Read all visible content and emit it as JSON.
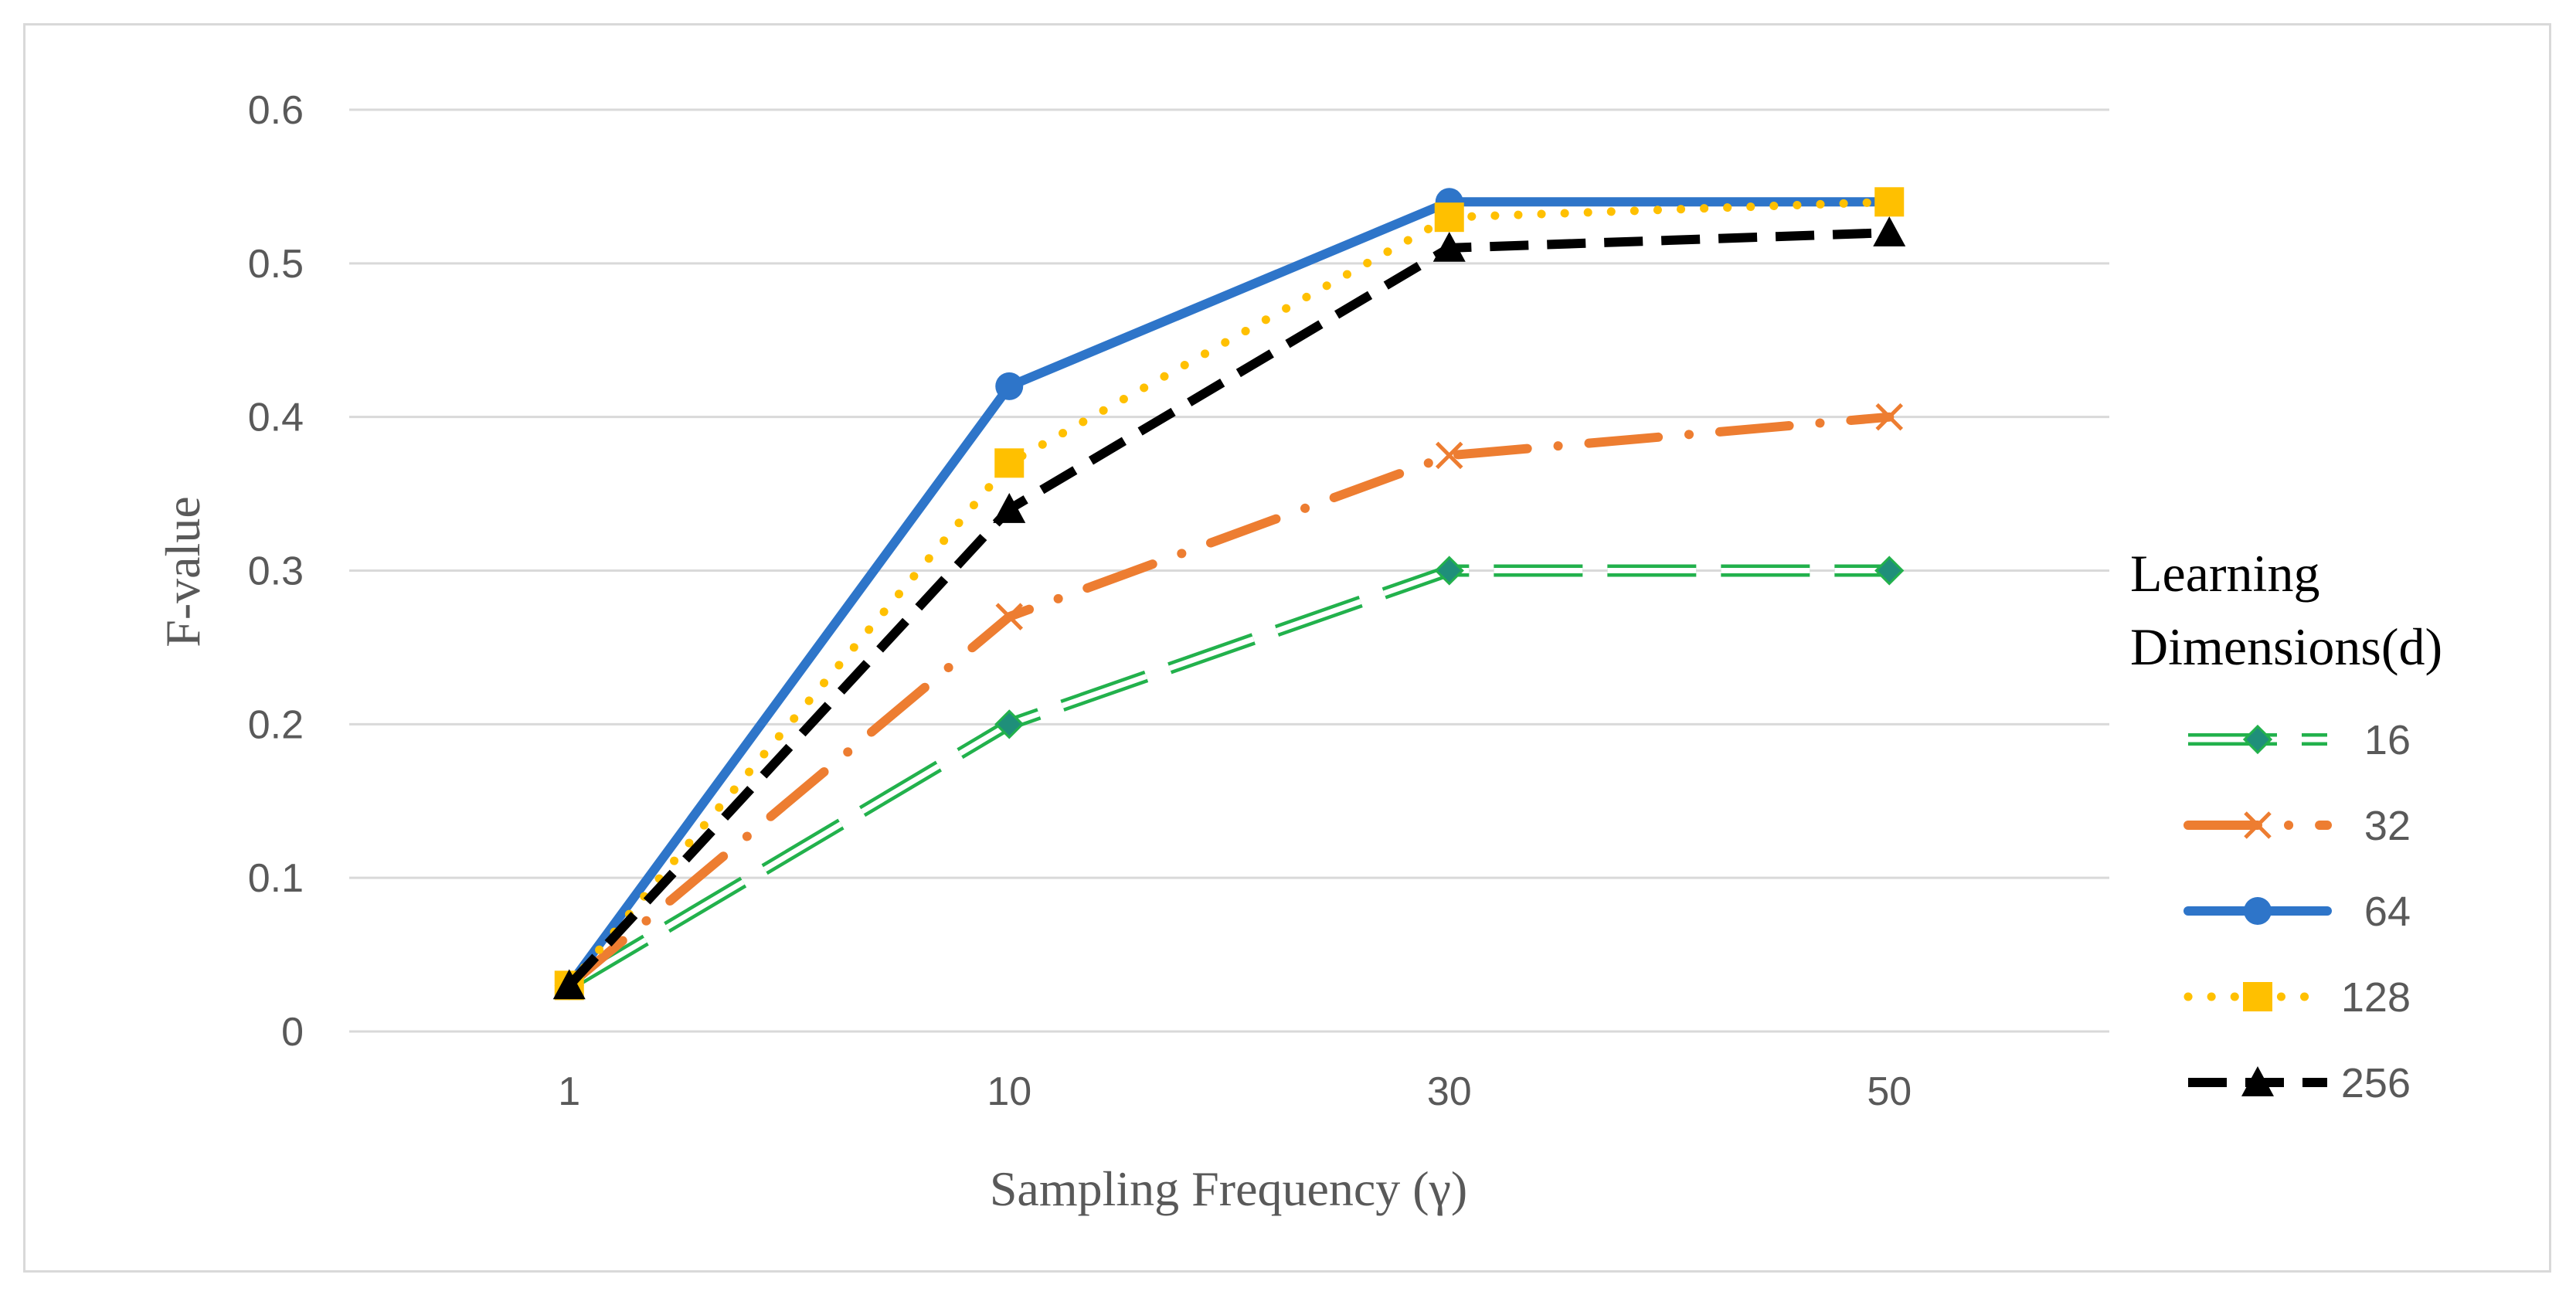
{
  "chart_data": {
    "type": "line",
    "title": "",
    "xlabel": "Sampling Frequency (γ)",
    "ylabel": "F-value",
    "categories": [
      "1",
      "10",
      "30",
      "50"
    ],
    "yticks": [
      "0",
      "0.1",
      "0.2",
      "0.3",
      "0.4",
      "0.5",
      "0.6"
    ],
    "ylim": [
      0,
      0.6
    ],
    "grid": true,
    "legend_title_lines": [
      "Learning",
      "Dimensions(d)"
    ],
    "legend_position": "right",
    "series": [
      {
        "name": "16",
        "values": [
          0.03,
          0.2,
          0.3,
          0.3
        ],
        "color": "#22b14c",
        "style": "double-dash",
        "marker": "diamond"
      },
      {
        "name": "32",
        "values": [
          0.03,
          0.27,
          0.375,
          0.4
        ],
        "color": "#ed7d31",
        "style": "dash-dot",
        "marker": "x"
      },
      {
        "name": "64",
        "values": [
          0.03,
          0.42,
          0.54,
          0.54
        ],
        "color": "#2e75c9",
        "style": "solid",
        "marker": "circle"
      },
      {
        "name": "128",
        "values": [
          0.03,
          0.37,
          0.53,
          0.54
        ],
        "color": "#ffc000",
        "style": "dotted",
        "marker": "square"
      },
      {
        "name": "256",
        "values": [
          0.03,
          0.34,
          0.51,
          0.52
        ],
        "color": "#000000",
        "style": "dashed",
        "marker": "triangle"
      }
    ]
  }
}
